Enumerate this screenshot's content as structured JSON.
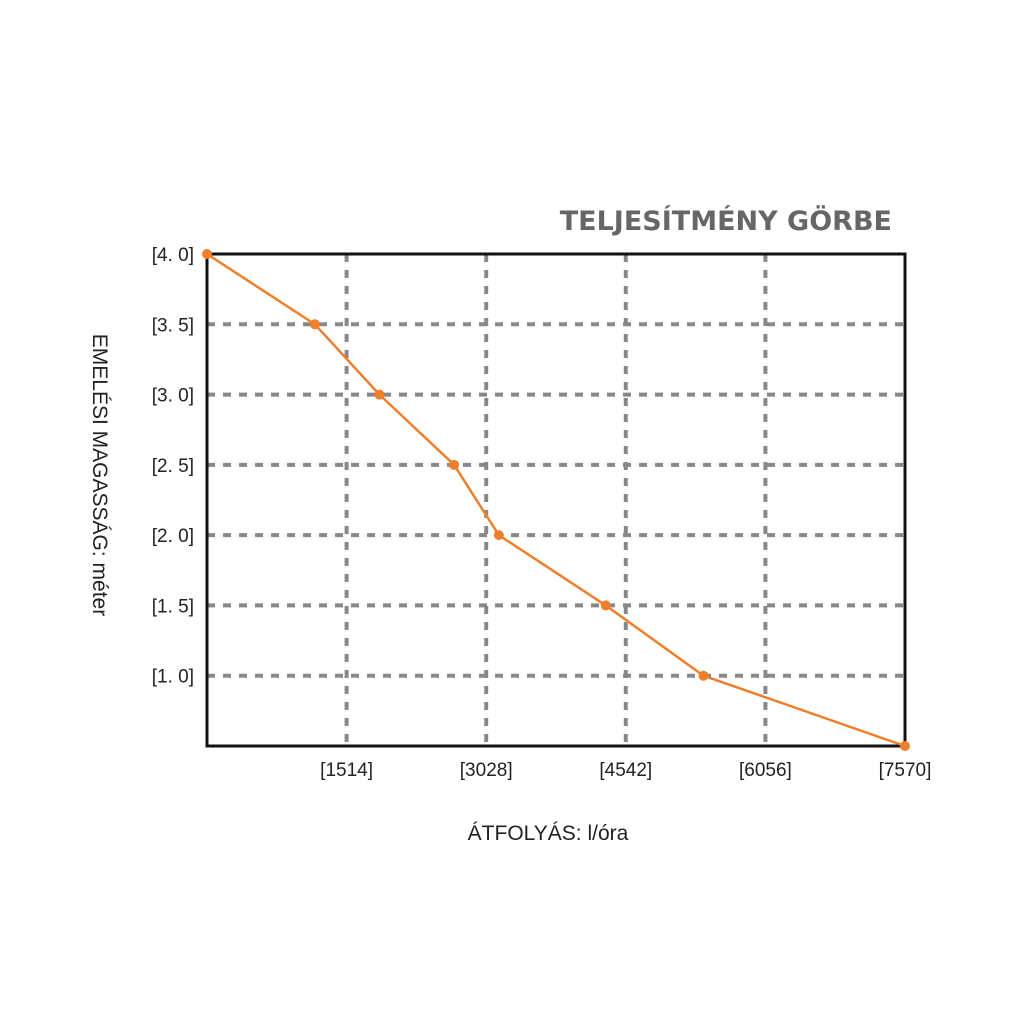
{
  "chart_data": {
    "type": "line",
    "title": "TELJESÍTMÉNY GÖRBE",
    "xlabel": "ÁTFOLYÁS: l/óra",
    "ylabel": "EMELÉSI MAGASSÁG: méter",
    "xlim": [
      0,
      7570
    ],
    "ylim": [
      0.5,
      4.0
    ],
    "x_ticks": [
      1514,
      3028,
      4542,
      6056,
      7570
    ],
    "x_tick_labels": [
      "[1514]",
      "[3028]",
      "[4542]",
      "[6056]",
      "[7570]"
    ],
    "y_ticks": [
      4.0,
      3.5,
      3.0,
      2.5,
      2.0,
      1.5,
      1.0
    ],
    "y_tick_labels": [
      "[4. 0]",
      "[3. 5]",
      "[3. 0]",
      "[2. 5]",
      "[2. 0]",
      "[1. 5]",
      "[1. 0]"
    ],
    "grid": true,
    "series": [
      {
        "color": "#f07f2c",
        "x": [
          0,
          1170,
          1870,
          2680,
          3165,
          4325,
          5385,
          7570
        ],
        "y": [
          4.0,
          3.5,
          3.0,
          2.5,
          2.0,
          1.5,
          1.0,
          0.5
        ]
      }
    ]
  }
}
